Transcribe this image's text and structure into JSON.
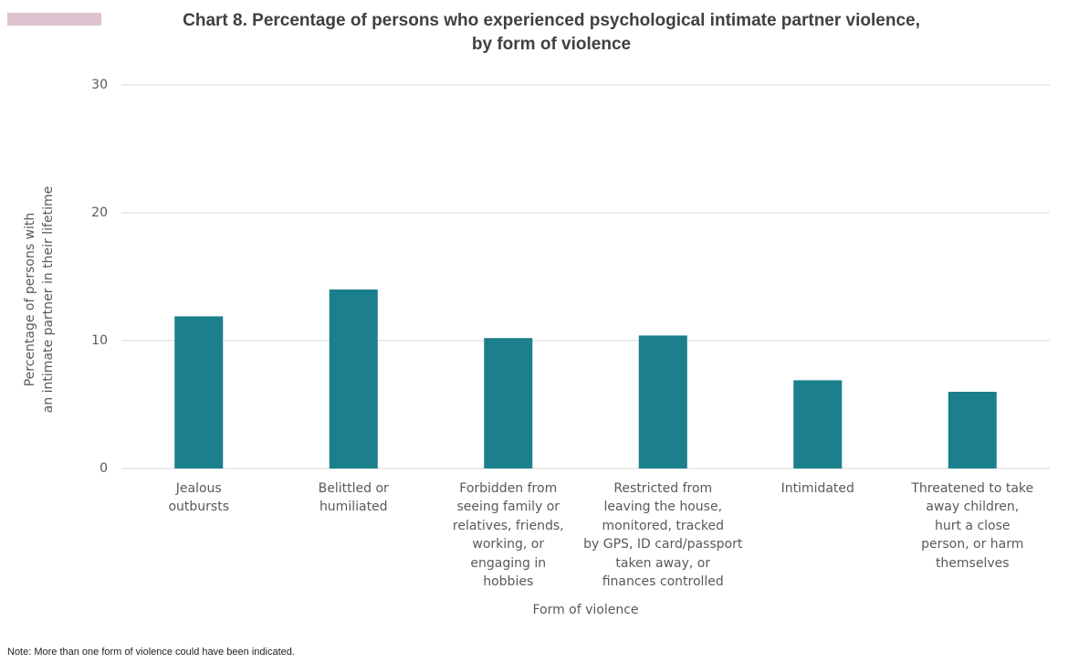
{
  "chart_data": {
    "type": "bar",
    "title": "Chart 8. Percentage of persons who experienced psychological intimate partner violence,\nby form of violence",
    "x_label": "Form of violence",
    "y_label": "Percentage of persons with\nan intimate partner in their lifetime",
    "categories": [
      "Jealous\noutbursts",
      "Belittled or\nhumiliated",
      "Forbidden from\nseeing family or\nrelatives, friends,\nworking, or\nengaging in\nhobbies",
      "Restricted from\nleaving the house,\nmonitored, tracked\nby GPS, ID card/passport\ntaken away, or\nfinances controlled",
      "Intimidated",
      "Threatened to take\naway children,\nhurt a close\nperson, or harm\nthemselves"
    ],
    "values": [
      11.9,
      14.0,
      10.2,
      10.4,
      6.9,
      6.0
    ],
    "color": "#1b7f8c",
    "ylim": [
      0,
      30
    ],
    "yticks": [
      0,
      10,
      20,
      30
    ],
    "grid": true,
    "note": "Note: More than one form of violence could have been indicated."
  }
}
